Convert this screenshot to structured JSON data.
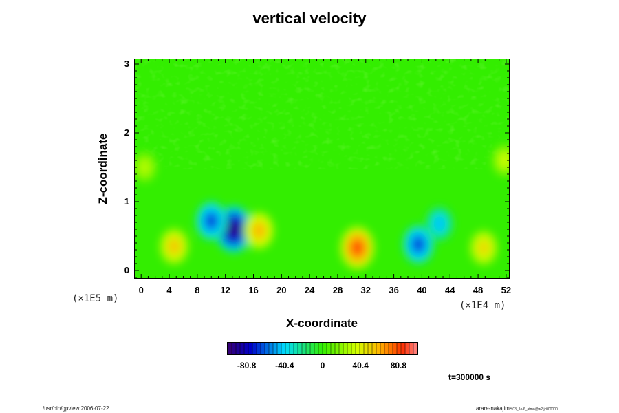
{
  "title": "vertical velocity",
  "chart_data": {
    "type": "heatmap",
    "title": "vertical velocity",
    "xlabel": "X-coordinate",
    "ylabel": "Z-coordinate",
    "x_scale_note": "(×1E4 m)",
    "y_scale_note": "(×1E5 m)",
    "xlim": [
      -1,
      52.5
    ],
    "ylim": [
      -0.12,
      3.08
    ],
    "x_ticks": [
      "0",
      "4",
      "8",
      "12",
      "16",
      "20",
      "24",
      "28",
      "32",
      "36",
      "40",
      "44",
      "48",
      "52"
    ],
    "y_ticks": [
      "0",
      "1",
      "2",
      "3"
    ],
    "colorbar": {
      "range": [
        -101,
        101
      ],
      "tick_labels": [
        "-80.8",
        "-40.4",
        "0",
        "40.4",
        "80.8"
      ],
      "tick_values": [
        -80.8,
        -40.4,
        0,
        40.4,
        80.8
      ]
    },
    "features": [
      {
        "kind": "downdraft",
        "x": 13.2,
        "z": 0.6,
        "value": -95
      },
      {
        "kind": "downdraft",
        "x": 10.0,
        "z": 0.72,
        "value": -65
      },
      {
        "kind": "downdraft",
        "x": 39.5,
        "z": 0.38,
        "value": -65
      },
      {
        "kind": "downdraft",
        "x": 42.5,
        "z": 0.68,
        "value": -45
      },
      {
        "kind": "updraft",
        "x": 30.8,
        "z": 0.33,
        "value": 80
      },
      {
        "kind": "updraft",
        "x": 4.7,
        "z": 0.35,
        "value": 55
      },
      {
        "kind": "updraft",
        "x": 16.8,
        "z": 0.58,
        "value": 60
      },
      {
        "kind": "updraft",
        "x": 48.8,
        "z": 0.33,
        "value": 50
      },
      {
        "kind": "updraft",
        "x": 51.8,
        "z": 1.6,
        "value": 35
      },
      {
        "kind": "updraft",
        "x": 0.5,
        "z": 1.5,
        "value": 30
      }
    ]
  },
  "time_label": "t=300000 s",
  "footer_left": "/usr/bin/gpview 2006-07-22",
  "footer_right_main": "arare-nakajima",
  "footer_right_sub": "03_1e-6_atmo@w2:jc000000"
}
